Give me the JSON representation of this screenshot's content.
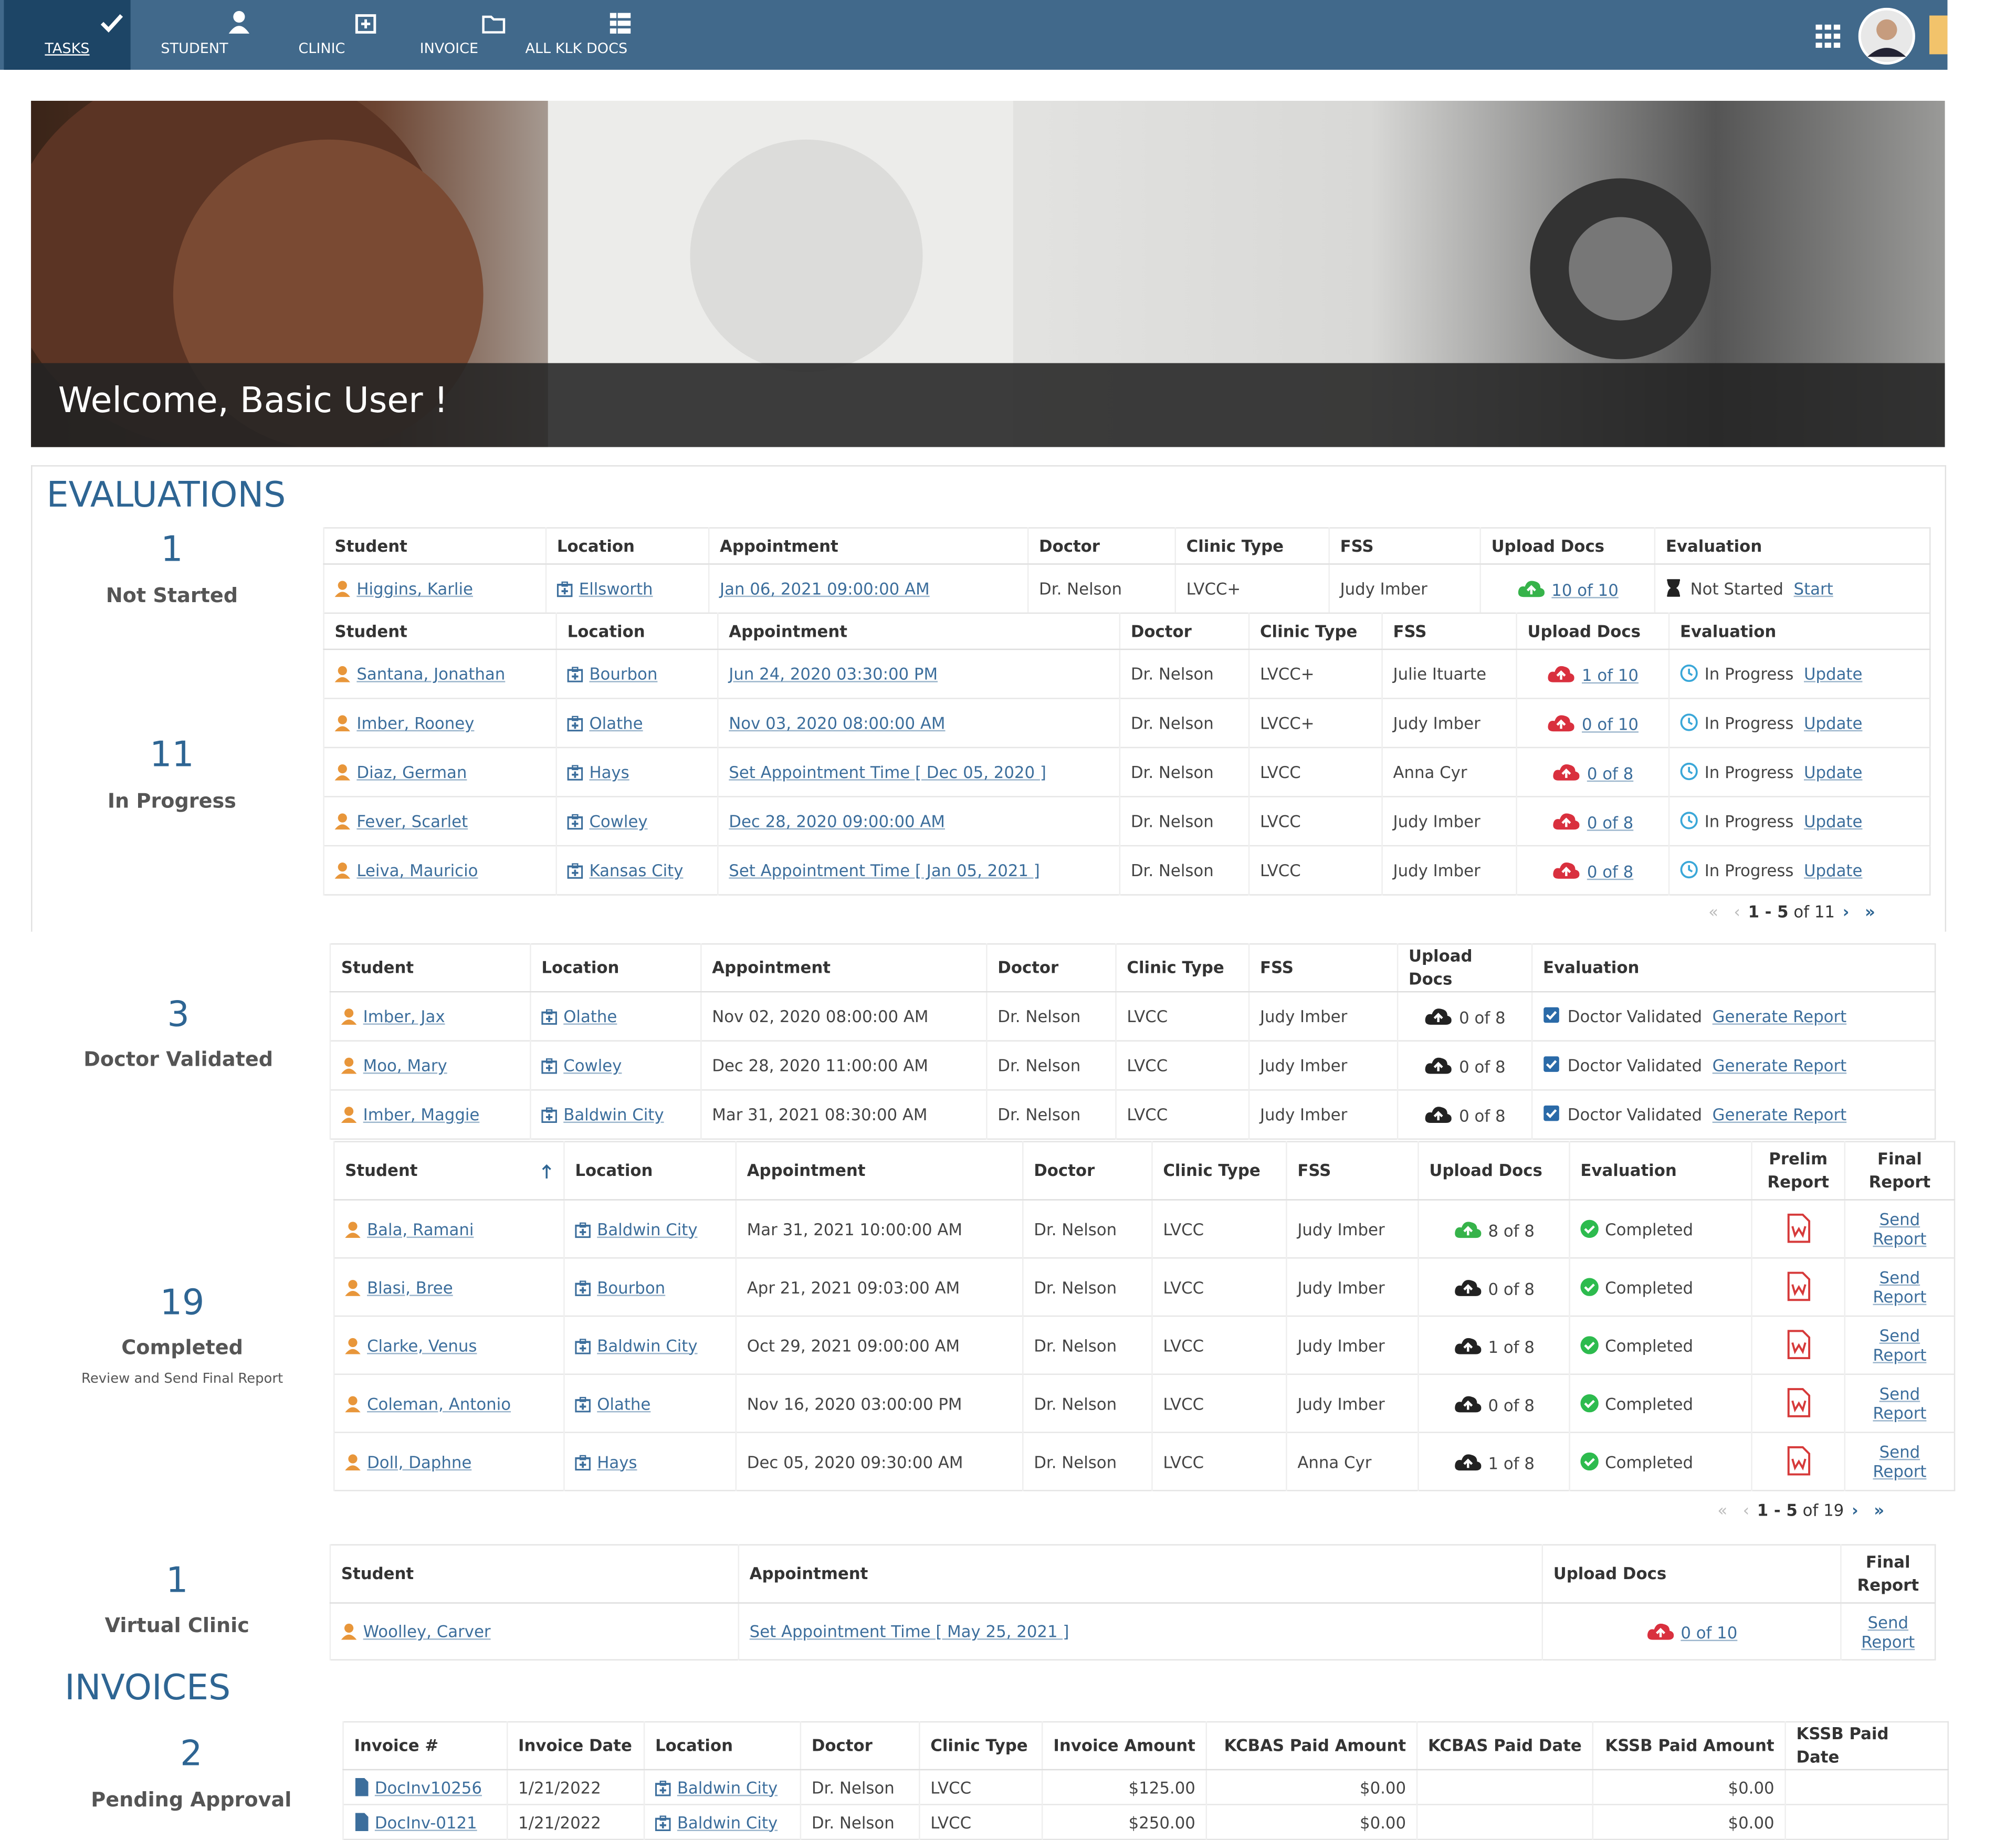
{
  "nav": {
    "items": [
      "TASKS",
      "STUDENT",
      "CLINIC",
      "INVOICE",
      "ALL KLK DOCS"
    ]
  },
  "banner": {
    "welcome": "Welcome, Basic User !"
  },
  "evaluations": {
    "title": "EVALUATIONS",
    "sections": [
      {
        "count": "1",
        "label": "Not Started",
        "table": {
          "headers": [
            "Student",
            "Location",
            "Appointment",
            "Doctor",
            "Clinic Type",
            "FSS",
            "Upload Docs",
            "Evaluation"
          ],
          "rows": [
            [
              "Higgins, Karlie",
              "Ellsworth",
              "Jan 06, 2021 09:00:00 AM",
              "Dr. Nelson",
              "LVCC+",
              "Judy Imber",
              "10 of 10",
              "Not Started",
              "Start"
            ]
          ]
        }
      },
      {
        "count": "11",
        "label": "In Progress",
        "table": {
          "headers": [
            "Student",
            "Location",
            "Appointment",
            "Doctor",
            "Clinic Type",
            "FSS",
            "Upload Docs",
            "Evaluation"
          ],
          "rows": [
            [
              "Santana, Jonathan",
              "Bourbon",
              "Jun 24, 2020 03:30:00 PM",
              "Dr. Nelson",
              "LVCC+",
              "Julie Ituarte",
              "1 of 10",
              "In Progress",
              "Update"
            ],
            [
              "Imber, Rooney",
              "Olathe",
              "Nov 03, 2020 08:00:00 AM",
              "Dr. Nelson",
              "LVCC+",
              "Judy Imber",
              "0 of 10",
              "In Progress",
              "Update"
            ],
            [
              "Diaz, German",
              "Hays",
              "Set Appointment Time [ Dec 05, 2020 ]",
              "Dr. Nelson",
              "LVCC",
              "Anna Cyr",
              "0 of 8",
              "In Progress",
              "Update"
            ],
            [
              "Fever, Scarlet",
              "Cowley",
              "Dec 28, 2020 09:00:00 AM",
              "Dr. Nelson",
              "LVCC",
              "Judy Imber",
              "0 of 8",
              "In Progress",
              "Update"
            ],
            [
              "Leiva, Mauricio",
              "Kansas City",
              "Set Appointment Time [ Jan 05, 2021 ]",
              "Dr. Nelson",
              "LVCC",
              "Judy Imber",
              "0 of 8",
              "In Progress",
              "Update"
            ]
          ]
        },
        "pager": {
          "range": "1 - 5",
          "total": "of 11"
        }
      },
      {
        "count": "3",
        "label": "Doctor Validated",
        "table": {
          "headers": [
            "Student",
            "Location",
            "Appointment",
            "Doctor",
            "Clinic Type",
            "FSS",
            "Upload Docs",
            "Evaluation"
          ],
          "rows": [
            [
              "Imber, Jax",
              "Olathe",
              "Nov 02, 2020 08:00:00 AM",
              "Dr. Nelson",
              "LVCC",
              "Judy Imber",
              "0 of 8",
              "Doctor Validated",
              "Generate Report"
            ],
            [
              "Moo, Mary",
              "Cowley",
              "Dec 28, 2020 11:00:00 AM",
              "Dr. Nelson",
              "LVCC",
              "Judy Imber",
              "0 of 8",
              "Doctor Validated",
              "Generate Report"
            ],
            [
              "Imber, Maggie",
              "Baldwin City",
              "Mar 31, 2021 08:30:00 AM",
              "Dr. Nelson",
              "LVCC",
              "Judy Imber",
              "0 of 8",
              "Doctor Validated",
              "Generate Report"
            ]
          ]
        }
      },
      {
        "count": "19",
        "label": "Completed",
        "sublabel": "Review and Send Final Report",
        "table": {
          "headers": [
            "Student",
            "Location",
            "Appointment",
            "Doctor",
            "Clinic Type",
            "FSS",
            "Upload Docs",
            "Evaluation",
            "Prelim Report",
            "Final Report"
          ],
          "rows": [
            [
              "Bala, Ramani",
              "Baldwin City",
              "Mar 31, 2021 10:00:00 AM",
              "Dr. Nelson",
              "LVCC",
              "Judy Imber",
              "8 of 8",
              "Completed",
              "Send Report"
            ],
            [
              "Blasi, Bree",
              "Bourbon",
              "Apr 21, 2021 09:03:00 AM",
              "Dr. Nelson",
              "LVCC",
              "Judy Imber",
              "0 of 8",
              "Completed",
              "Send Report"
            ],
            [
              "Clarke, Venus",
              "Baldwin City",
              "Oct 29, 2021 09:00:00 AM",
              "Dr. Nelson",
              "LVCC",
              "Judy Imber",
              "1 of 8",
              "Completed",
              "Send Report"
            ],
            [
              "Coleman, Antonio",
              "Olathe",
              "Nov 16, 2020 03:00:00 PM",
              "Dr. Nelson",
              "LVCC",
              "Judy Imber",
              "0 of 8",
              "Completed",
              "Send Report"
            ],
            [
              "Doll, Daphne",
              "Hays",
              "Dec 05, 2020 09:30:00 AM",
              "Dr. Nelson",
              "LVCC",
              "Anna Cyr",
              "1 of 8",
              "Completed",
              "Send Report"
            ]
          ]
        },
        "pager": {
          "range": "1 - 5",
          "total": "of 19"
        }
      },
      {
        "count": "1",
        "label": "Virtual Clinic",
        "table": {
          "headers": [
            "Student",
            "Appointment",
            "Upload Docs",
            "Final Report"
          ],
          "rows": [
            [
              "Woolley, Carver",
              "Set Appointment Time [ May 25, 2021 ]",
              "0 of 10",
              "Send Report"
            ]
          ]
        }
      }
    ]
  },
  "invoices": {
    "title": "INVOICES",
    "count": "2",
    "label": "Pending Approval",
    "table": {
      "headers": [
        "Invoice #",
        "Invoice Date",
        "Location",
        "Doctor",
        "Clinic Type",
        "Invoice Amount",
        "KCBAS Paid Amount",
        "KCBAS Paid Date",
        "KSSB Paid Amount",
        "KSSB Paid Date"
      ],
      "rows": [
        [
          "DocInv10256",
          "1/21/2022",
          "Baldwin City",
          "Dr. Nelson",
          "LVCC",
          "$125.00",
          "$0.00",
          null,
          "$0.00",
          null
        ],
        [
          "DocInv-0121",
          "1/21/2022",
          "Baldwin City",
          "Dr. Nelson",
          "LVCC",
          "$250.00",
          "$0.00",
          null,
          "$0.00",
          null
        ]
      ]
    }
  }
}
